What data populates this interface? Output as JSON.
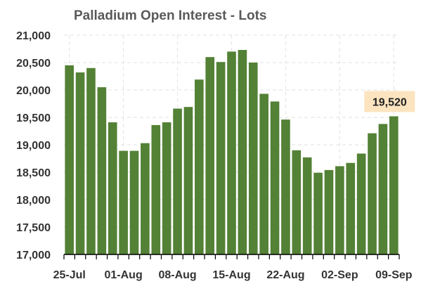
{
  "chart_data": {
    "type": "bar",
    "title": "Palladium Open Interest - Lots",
    "xlabel": "",
    "ylabel": "",
    "ylim": [
      17000,
      21000
    ],
    "yticks": [
      17000,
      17500,
      18000,
      18500,
      19000,
      19500,
      20000,
      20500,
      21000
    ],
    "ytick_labels": [
      "17,000",
      "17,500",
      "18,000",
      "18,500",
      "19,000",
      "19,500",
      "20,000",
      "20,500",
      "21,000"
    ],
    "x_tick_labels": [
      "25-Jul",
      "01-Aug",
      "08-Aug",
      "15-Aug",
      "22-Aug",
      "02-Sep",
      "09-Sep"
    ],
    "x_tick_positions": [
      0,
      5,
      10,
      15,
      20,
      25,
      30
    ],
    "values": [
      20450,
      20320,
      20400,
      20050,
      19410,
      18890,
      18890,
      19030,
      19360,
      19410,
      19660,
      19690,
      20190,
      20600,
      20510,
      20700,
      20730,
      20500,
      19930,
      19790,
      19460,
      18900,
      18770,
      18490,
      18540,
      18610,
      18670,
      18840,
      19210,
      19380,
      19520
    ],
    "color": "#538135",
    "grid": true,
    "callout": {
      "label": "19,520",
      "color": "#FCE4C0"
    }
  }
}
